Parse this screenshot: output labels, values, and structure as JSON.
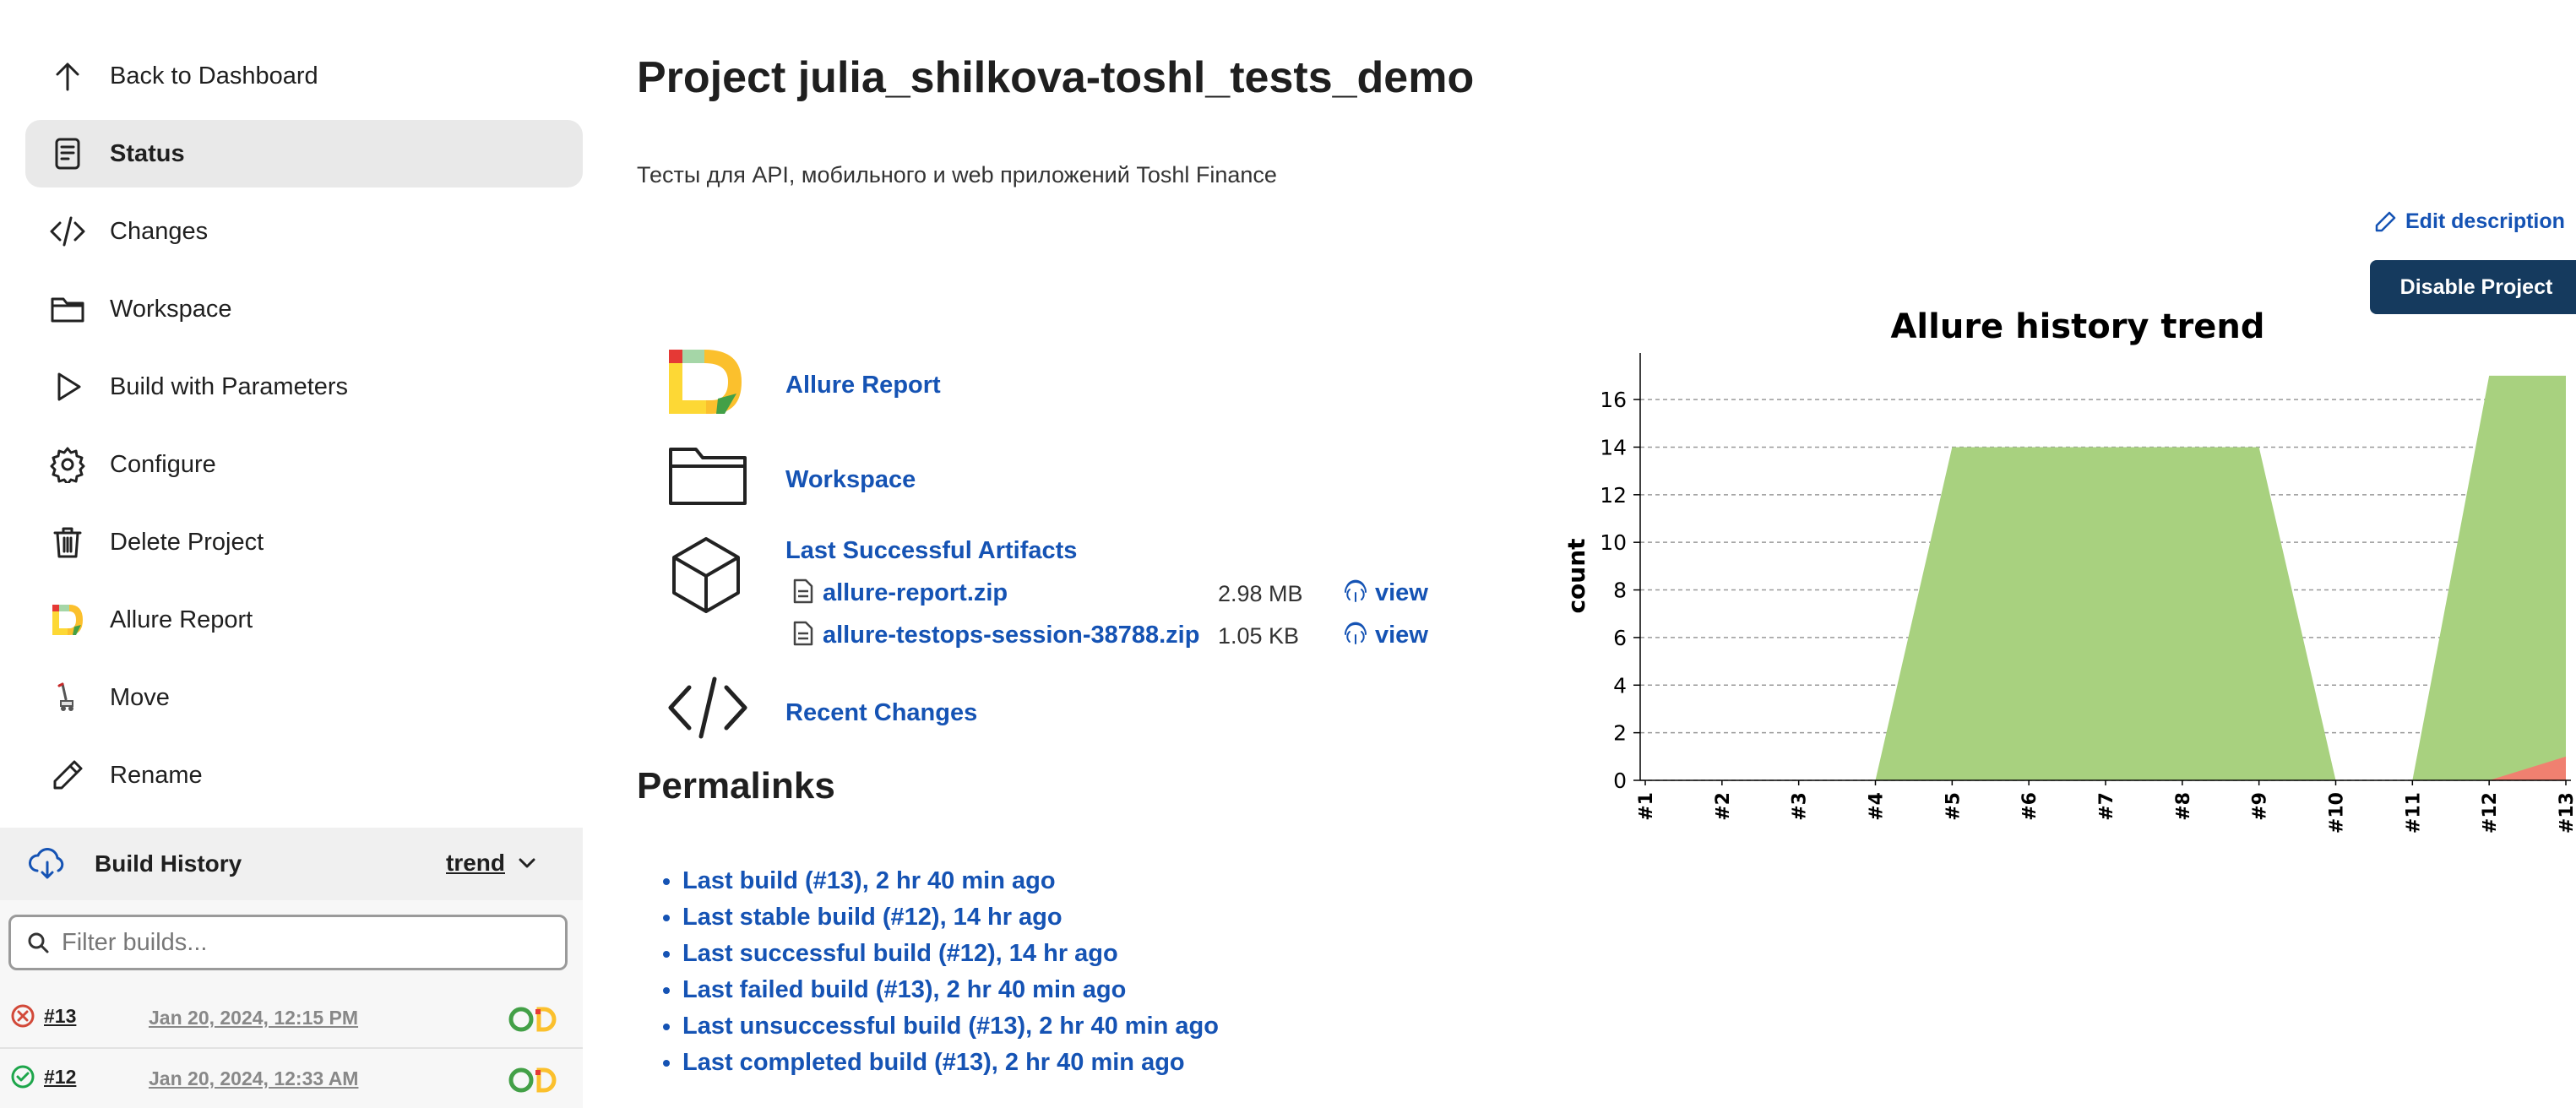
{
  "sidebar": {
    "tasks": [
      {
        "label": "Back to Dashboard",
        "icon": "arrow-up-icon",
        "active": false
      },
      {
        "label": "Status",
        "icon": "document-icon",
        "active": true
      },
      {
        "label": "Changes",
        "icon": "code-icon",
        "active": false
      },
      {
        "label": "Workspace",
        "icon": "folder-icon",
        "active": false
      },
      {
        "label": "Build with Parameters",
        "icon": "play-icon",
        "active": false
      },
      {
        "label": "Configure",
        "icon": "gear-icon",
        "active": false
      },
      {
        "label": "Delete Project",
        "icon": "trash-icon",
        "active": false
      },
      {
        "label": "Allure Report",
        "icon": "allure-logo-icon",
        "active": false
      },
      {
        "label": "Move",
        "icon": "move-icon",
        "active": false
      },
      {
        "label": "Rename",
        "icon": "pencil-icon",
        "active": false
      }
    ]
  },
  "build_history": {
    "title": "Build History",
    "trend_label": "trend",
    "filter_placeholder": "Filter builds...",
    "builds": [
      {
        "number": "#13",
        "date": "Jan 20, 2024, 12:15 PM",
        "status": "failed",
        "status_color": "#d24939"
      },
      {
        "number": "#12",
        "date": "Jan 20, 2024, 12:33 AM",
        "status": "success",
        "status_color": "#1ea64b"
      }
    ]
  },
  "main": {
    "title": "Project julia_shilkova-toshl_tests_demo",
    "description": "Тесты для API, мобильного и web приложений Toshl Finance",
    "edit_description": "Edit description",
    "disable_button": "Disable Project",
    "links": {
      "allure_report": "Allure Report",
      "workspace": "Workspace",
      "last_successful_artifacts": "Last Successful Artifacts",
      "recent_changes": "Recent Changes"
    },
    "artifacts": [
      {
        "name": "allure-report.zip",
        "size": "2.98 MB",
        "view": "view"
      },
      {
        "name": "allure-testops-session-38788.zip",
        "size": "1.05 KB",
        "view": "view"
      }
    ],
    "permalinks_title": "Permalinks",
    "permalinks": [
      "Last build (#13), 2 hr 40 min ago",
      "Last stable build (#12), 14 hr ago",
      "Last successful build (#12), 14 hr ago",
      "Last failed build (#13), 2 hr 40 min ago",
      "Last unsuccessful build (#13), 2 hr 40 min ago",
      "Last completed build (#13), 2 hr 40 min ago"
    ]
  },
  "colors": {
    "link": "#1553b4",
    "passed": "#a8d17f",
    "failed": "#f08070",
    "button": "#153a5e"
  },
  "chart_data": {
    "type": "area",
    "title": "Allure history trend",
    "xlabel": "",
    "ylabel": "count",
    "categories": [
      "#1",
      "#2",
      "#3",
      "#4",
      "#5",
      "#6",
      "#7",
      "#8",
      "#9",
      "#10",
      "#11",
      "#12",
      "#13"
    ],
    "yticks": [
      0,
      2,
      4,
      6,
      8,
      10,
      12,
      14,
      16
    ],
    "ylim": [
      0,
      17.6
    ],
    "grid": true,
    "series": [
      {
        "values": [
          0,
          0,
          0,
          0,
          14,
          14,
          14,
          14,
          14,
          0,
          0,
          17,
          17
        ],
        "color": "#a8d17f"
      },
      {
        "values": [
          0,
          0,
          0,
          0,
          0,
          0,
          0,
          0,
          0,
          0,
          0,
          0,
          1
        ],
        "color": "#f08070"
      }
    ]
  }
}
